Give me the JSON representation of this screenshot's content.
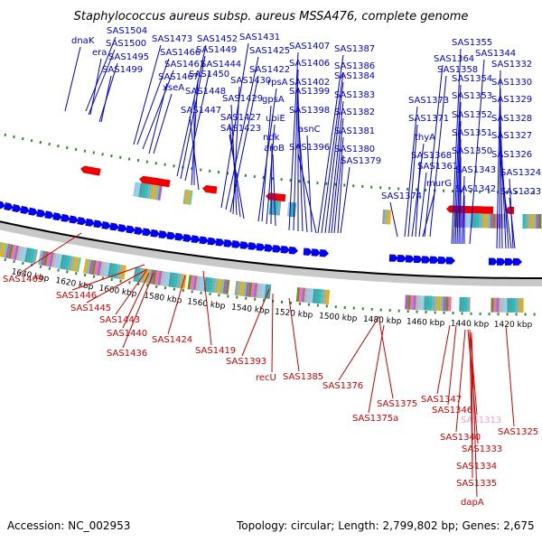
{
  "title": "Staphylococcus aureus subsp. aureus MSSA476, complete genome",
  "accession": "Accession: NC_002953",
  "topology": "Topology: circular; Length: 2,799,802 bp; Genes: 2,675",
  "colors": {
    "forward_label": "#0000cc",
    "reverse_label": "#cc0000",
    "highlight_label": "#f4a0c8",
    "forward_arrow": "#0000ee",
    "reverse_arrow": "#ee0000",
    "ruler": "#000000",
    "tick": "#2e8b2e"
  },
  "kbp_ticks": [
    "1640 kbp",
    "1620 kbp",
    "1600 kbp",
    "1580 kbp",
    "1560 kbp",
    "1540 kbp",
    "1520 kbp",
    "1500 kbp",
    "1480 kbp",
    "1460 kbp",
    "1440 kbp",
    "1420 kbp"
  ],
  "forward_genes": [
    {
      "label": "dnaK"
    },
    {
      "label": "SAS1504"
    },
    {
      "label": "SAS1500"
    },
    {
      "label": "era"
    },
    {
      "label": "SAS1495"
    },
    {
      "label": "SAS1499"
    },
    {
      "label": "SAS1473"
    },
    {
      "label": "SAS1466"
    },
    {
      "label": "SAS1461"
    },
    {
      "label": "SAS1467"
    },
    {
      "label": "xseA"
    },
    {
      "label": "SAS1452"
    },
    {
      "label": "SAS1449"
    },
    {
      "label": "SAS1444"
    },
    {
      "label": "SAS1450"
    },
    {
      "label": "SAS1448"
    },
    {
      "label": "SAS1447"
    },
    {
      "label": "SAS1431"
    },
    {
      "label": "SAS1425"
    },
    {
      "label": "SAS1422"
    },
    {
      "label": "SAS1430"
    },
    {
      "label": "SAS1429"
    },
    {
      "label": "SAS1427"
    },
    {
      "label": "SAS1423"
    },
    {
      "label": "rpsA"
    },
    {
      "label": "gpsA"
    },
    {
      "label": "ubiE"
    },
    {
      "label": "ndk"
    },
    {
      "label": "aroB"
    },
    {
      "label": "SAS1407"
    },
    {
      "label": "SAS1406"
    },
    {
      "label": "SAS1402"
    },
    {
      "label": "SAS1399"
    },
    {
      "label": "SAS1398"
    },
    {
      "label": "asnC"
    },
    {
      "label": "SAS1396"
    },
    {
      "label": "SAS1387"
    },
    {
      "label": "SAS1386"
    },
    {
      "label": "SAS1384"
    },
    {
      "label": "SAS1383"
    },
    {
      "label": "SAS1382"
    },
    {
      "label": "SAS1381"
    },
    {
      "label": "SAS1380"
    },
    {
      "label": "SAS1379"
    },
    {
      "label": "SAS1373"
    },
    {
      "label": "SAS1371"
    },
    {
      "label": "thyA"
    },
    {
      "label": "SAS1368"
    },
    {
      "label": "SAS1361"
    },
    {
      "label": "SAS1374"
    },
    {
      "label": "murG"
    },
    {
      "label": "SAS1364"
    },
    {
      "label": "SAS1358"
    },
    {
      "label": "SAS1355"
    },
    {
      "label": "SAS1344"
    },
    {
      "label": "SAS1354"
    },
    {
      "label": "SAS1353"
    },
    {
      "label": "SAS1352"
    },
    {
      "label": "SAS1351"
    },
    {
      "label": "SAS1350"
    },
    {
      "label": "SAS1343"
    },
    {
      "label": "SAS1342"
    },
    {
      "label": "SAS1332"
    },
    {
      "label": "SAS1330"
    },
    {
      "label": "SAS1329"
    },
    {
      "label": "SAS1328"
    },
    {
      "label": "SAS1327"
    },
    {
      "label": "SAS1326"
    },
    {
      "label": "SAS1324"
    },
    {
      "label": "SAS1323"
    }
  ],
  "reverse_genes": [
    {
      "label": "SAS1469"
    },
    {
      "label": "SAS1446"
    },
    {
      "label": "SAS1445"
    },
    {
      "label": "SAS1443"
    },
    {
      "label": "SAS1440"
    },
    {
      "label": "SAS1436"
    },
    {
      "label": "SAS1424"
    },
    {
      "label": "SAS1419"
    },
    {
      "label": "SAS1393"
    },
    {
      "label": "recU"
    },
    {
      "label": "SAS1385"
    },
    {
      "label": "SAS1376"
    },
    {
      "label": "SAS1375"
    },
    {
      "label": "SAS1375a"
    },
    {
      "label": "SAS1347"
    },
    {
      "label": "SAS1346"
    },
    {
      "label": "SAS1313"
    },
    {
      "label": "SAS1340"
    },
    {
      "label": "SAS1333"
    },
    {
      "label": "SAS1334"
    },
    {
      "label": "SAS1335"
    },
    {
      "label": "dapA"
    },
    {
      "label": "SAS1325"
    }
  ]
}
